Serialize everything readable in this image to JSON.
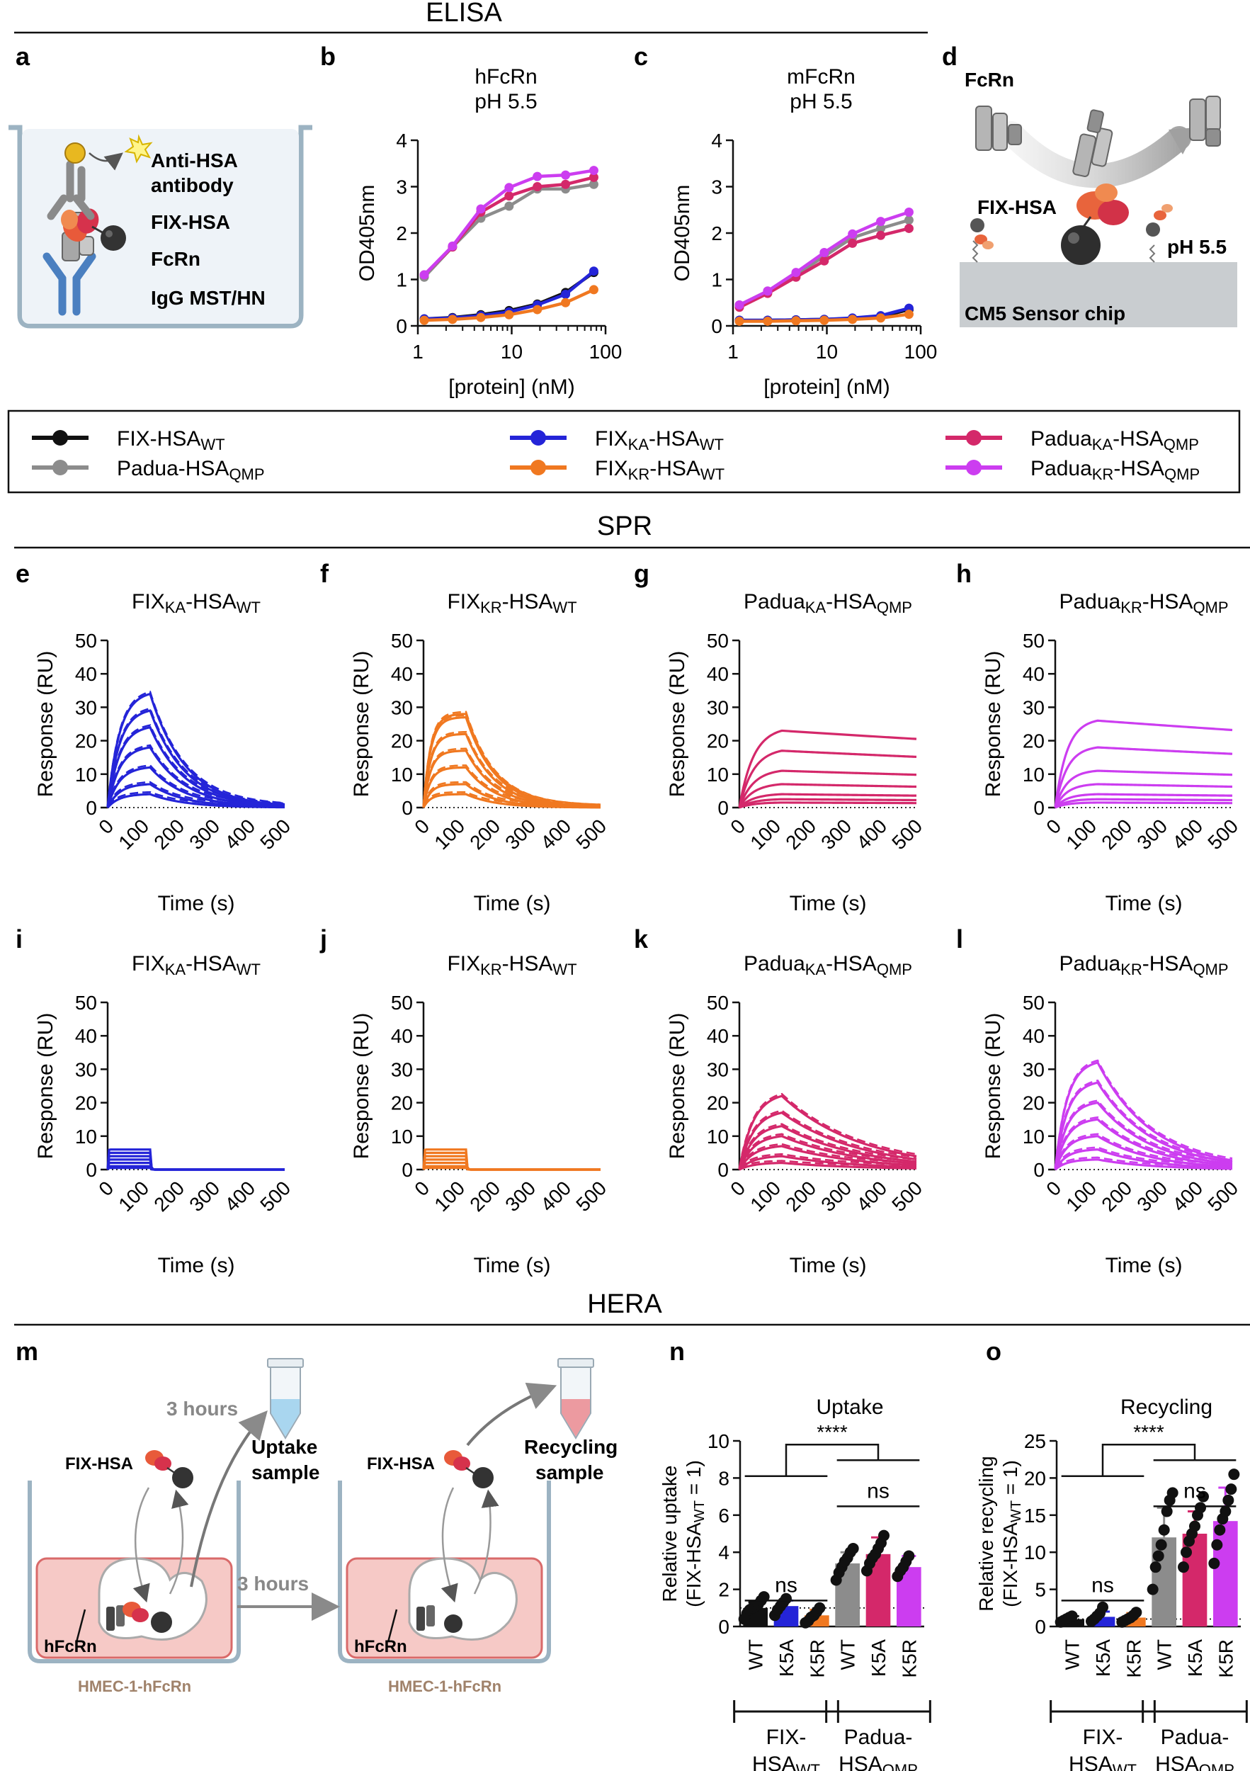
{
  "sections": {
    "elisa": "ELISA",
    "spr": "SPR",
    "hera": "HERA"
  },
  "panel_letters": {
    "a": "a",
    "b": "b",
    "c": "c",
    "d": "d",
    "e": "e",
    "f": "f",
    "g": "g",
    "h": "h",
    "i": "i",
    "j": "j",
    "k": "k",
    "l": "l",
    "m": "m",
    "n": "n",
    "o": "o"
  },
  "colors": {
    "FIX_WT": "#111111",
    "Padua_QMP": "#8c8c8c",
    "FIX_KA": "#2424d8",
    "FIX_KR": "#f07820",
    "Padua_KA": "#d4286a",
    "Padua_KR": "#cc3df0"
  },
  "panel_a": {
    "labels": [
      "Anti-HSA",
      "antibody",
      "FIX-HSA",
      "FcRn",
      "IgG MST/HN"
    ]
  },
  "panel_d": {
    "fcrn": "FcRn",
    "fixhsa": "FIX-HSA",
    "ph": "pH 5.5",
    "chip": "CM5 Sensor chip"
  },
  "legend": [
    {
      "key": "FIX_WT",
      "base": "FIX-HSA",
      "sub1": "",
      "mid": "",
      "sub2": "WT"
    },
    {
      "key": "Padua_QMP",
      "base": "Padua-HSA",
      "sub1": "",
      "mid": "",
      "sub2": "QMP"
    },
    {
      "key": "FIX_KA",
      "base": "FIX",
      "sub1": "KA",
      "mid": "-HSA",
      "sub2": "WT"
    },
    {
      "key": "FIX_KR",
      "base": "FIX",
      "sub1": "KR",
      "mid": "-HSA",
      "sub2": "WT"
    },
    {
      "key": "Padua_KA",
      "base": "Padua",
      "sub1": "KA",
      "mid": "-HSA",
      "sub2": "QMP"
    },
    {
      "key": "Padua_KR",
      "base": "Padua",
      "sub1": "KR",
      "mid": "-HSA",
      "sub2": "QMP"
    }
  ],
  "panel_m": {
    "three_hours_top": "3 hours",
    "uptake_1": "Uptake",
    "uptake_2": "sample",
    "fixhsa_1": "FIX-HSA",
    "fixhsa_2": "FIX-HSA",
    "hfcrn_1": "hFcRn",
    "hfcrn_2": "hFcRn",
    "three_hours_mid": "3 hours",
    "recycling_1": "Recycling",
    "recycling_2": "sample",
    "cells_1": "HMEC-1-hFcRn",
    "cells_2": "HMEC-1-hFcRn"
  },
  "chart_data": [
    {
      "id": "b",
      "type": "line",
      "title": [
        "hFcRn",
        "pH 5.5"
      ],
      "xlabel": "[protein] (nM)",
      "ylabel": "OD405nm",
      "xscale": "log",
      "xlim": [
        1,
        100
      ],
      "ylim": [
        0,
        4
      ],
      "xticks": [
        1,
        10,
        100
      ],
      "yticks": [
        0,
        1,
        2,
        3,
        4
      ],
      "x": [
        1.17,
        2.34,
        4.69,
        9.38,
        18.75,
        37.5,
        75
      ],
      "series": [
        {
          "key": "FIX_WT",
          "values": [
            0.15,
            0.18,
            0.24,
            0.33,
            0.47,
            0.72,
            1.15
          ]
        },
        {
          "key": "FIX_KA",
          "values": [
            0.15,
            0.17,
            0.22,
            0.3,
            0.45,
            0.68,
            1.18
          ]
        },
        {
          "key": "FIX_KR",
          "values": [
            0.12,
            0.14,
            0.18,
            0.24,
            0.35,
            0.5,
            0.78
          ]
        },
        {
          "key": "Padua_QMP",
          "values": [
            1.05,
            1.7,
            2.32,
            2.58,
            2.95,
            2.95,
            3.05
          ]
        },
        {
          "key": "Padua_KA",
          "values": [
            1.1,
            1.7,
            2.45,
            2.8,
            3.0,
            3.05,
            3.2
          ]
        },
        {
          "key": "Padua_KR",
          "values": [
            1.1,
            1.72,
            2.52,
            2.98,
            3.22,
            3.25,
            3.35
          ]
        }
      ]
    },
    {
      "id": "c",
      "type": "line",
      "title": [
        "mFcRn",
        "pH 5.5"
      ],
      "xlabel": "[protein] (nM)",
      "ylabel": "OD405nm",
      "xscale": "log",
      "xlim": [
        1,
        100
      ],
      "ylim": [
        0,
        4
      ],
      "xticks": [
        1,
        10,
        100
      ],
      "yticks": [
        0,
        1,
        2,
        3,
        4
      ],
      "x": [
        1.17,
        2.34,
        4.69,
        9.38,
        18.75,
        37.5,
        75
      ],
      "series": [
        {
          "key": "FIX_WT",
          "values": [
            0.12,
            0.12,
            0.13,
            0.14,
            0.16,
            0.2,
            0.35
          ]
        },
        {
          "key": "FIX_KA",
          "values": [
            0.12,
            0.12,
            0.13,
            0.14,
            0.17,
            0.22,
            0.38
          ]
        },
        {
          "key": "FIX_KR",
          "values": [
            0.1,
            0.1,
            0.11,
            0.12,
            0.14,
            0.17,
            0.25
          ]
        },
        {
          "key": "Padua_QMP",
          "values": [
            0.45,
            0.75,
            1.1,
            1.5,
            1.9,
            2.1,
            2.28
          ]
        },
        {
          "key": "Padua_KA",
          "values": [
            0.4,
            0.7,
            1.05,
            1.4,
            1.78,
            1.95,
            2.1
          ]
        },
        {
          "key": "Padua_KR",
          "values": [
            0.45,
            0.75,
            1.15,
            1.58,
            1.98,
            2.25,
            2.45
          ]
        }
      ]
    },
    {
      "id": "e",
      "type": "line",
      "key": "FIX_KA",
      "title": {
        "base": "FIX",
        "sub1": "KA",
        "mid": "-HSA",
        "sub2": "WT"
      },
      "xlabel": "Time (s)",
      "ylabel": "Response (RU)",
      "xlim": [
        0,
        500
      ],
      "ylim": [
        0,
        50
      ],
      "xticks": [
        0,
        100,
        200,
        300,
        400,
        500
      ],
      "yticks": [
        0,
        10,
        20,
        30,
        40,
        50
      ],
      "assoc_end": 120,
      "kon": 0.03,
      "koff": 0.01,
      "dashed": true,
      "rmax_values": [
        34,
        29,
        24,
        18,
        12,
        7,
        4
      ]
    },
    {
      "id": "f",
      "type": "line",
      "key": "FIX_KR",
      "title": {
        "base": "FIX",
        "sub1": "KR",
        "mid": "-HSA",
        "sub2": "WT"
      },
      "xlabel": "Time (s)",
      "ylabel": "Response (RU)",
      "xlim": [
        0,
        500
      ],
      "ylim": [
        0,
        50
      ],
      "xticks": [
        0,
        100,
        200,
        300,
        400,
        500
      ],
      "yticks": [
        0,
        10,
        20,
        30,
        40,
        50
      ],
      "assoc_end": 120,
      "kon": 0.05,
      "koff": 0.012,
      "dashed": true,
      "rmax_values": [
        28,
        27,
        22,
        17,
        12,
        7,
        4
      ]
    },
    {
      "id": "g",
      "type": "line",
      "key": "Padua_KA",
      "title": {
        "base": "Padua",
        "sub1": "KA",
        "mid": "-HSA",
        "sub2": "QMP"
      },
      "xlabel": "Time (s)",
      "ylabel": "Response (RU)",
      "xlim": [
        0,
        500
      ],
      "ylim": [
        0,
        50
      ],
      "xticks": [
        0,
        100,
        200,
        300,
        400,
        500
      ],
      "yticks": [
        0,
        10,
        20,
        30,
        40,
        50
      ],
      "assoc_end": 120,
      "kon": 0.025,
      "koff": 0.0003,
      "dashed": false,
      "rmax_values": [
        23,
        17,
        11,
        7,
        4,
        2.5,
        1.5
      ]
    },
    {
      "id": "h",
      "type": "line",
      "key": "Padua_KR",
      "title": {
        "base": "Padua",
        "sub1": "KR",
        "mid": "-HSA",
        "sub2": "QMP"
      },
      "xlabel": "Time (s)",
      "ylabel": "Response (RU)",
      "xlim": [
        0,
        500
      ],
      "ylim": [
        0,
        50
      ],
      "xticks": [
        0,
        100,
        200,
        300,
        400,
        500
      ],
      "yticks": [
        0,
        10,
        20,
        30,
        40,
        50
      ],
      "assoc_end": 120,
      "kon": 0.03,
      "koff": 0.0003,
      "dashed": false,
      "rmax_values": [
        26,
        18,
        11,
        7,
        4,
        2.5,
        1.5
      ]
    },
    {
      "id": "i",
      "type": "line",
      "key": "FIX_KA",
      "title": {
        "base": "FIX",
        "sub1": "KA",
        "mid": "-HSA",
        "sub2": "WT"
      },
      "xlabel": "Time (s)",
      "ylabel": "Response (RU)",
      "xlim": [
        0,
        500
      ],
      "ylim": [
        0,
        50
      ],
      "xticks": [
        0,
        100,
        200,
        300,
        400,
        500
      ],
      "yticks": [
        0,
        10,
        20,
        30,
        40,
        50
      ],
      "assoc_end": 120,
      "kon": 1.0,
      "koff": 0.5,
      "dashed": false,
      "rmax_values": [
        6,
        5,
        4,
        3,
        2,
        1,
        0.5
      ]
    },
    {
      "id": "j",
      "type": "line",
      "key": "FIX_KR",
      "title": {
        "base": "FIX",
        "sub1": "KR",
        "mid": "-HSA",
        "sub2": "WT"
      },
      "xlabel": "Time (s)",
      "ylabel": "Response (RU)",
      "xlim": [
        0,
        500
      ],
      "ylim": [
        0,
        50
      ],
      "xticks": [
        0,
        100,
        200,
        300,
        400,
        500
      ],
      "yticks": [
        0,
        10,
        20,
        30,
        40,
        50
      ],
      "assoc_end": 120,
      "kon": 1.0,
      "koff": 0.5,
      "dashed": false,
      "rmax_values": [
        6,
        5,
        4,
        3,
        2,
        1,
        0.5
      ]
    },
    {
      "id": "k",
      "type": "line",
      "key": "Padua_KA",
      "title": {
        "base": "Padua",
        "sub1": "KA",
        "mid": "-HSA",
        "sub2": "QMP"
      },
      "xlabel": "Time (s)",
      "ylabel": "Response (RU)",
      "xlim": [
        0,
        500
      ],
      "ylim": [
        0,
        50
      ],
      "xticks": [
        0,
        100,
        200,
        300,
        400,
        500
      ],
      "yticks": [
        0,
        10,
        20,
        30,
        40,
        50
      ],
      "assoc_end": 120,
      "kon": 0.025,
      "koff": 0.0045,
      "dashed": true,
      "rmax_values": [
        22,
        17,
        13,
        10,
        7,
        4,
        2
      ]
    },
    {
      "id": "l",
      "type": "line",
      "key": "Padua_KR",
      "title": {
        "base": "Padua",
        "sub1": "KR",
        "mid": "-HSA",
        "sub2": "QMP"
      },
      "xlabel": "Time (s)",
      "ylabel": "Response (RU)",
      "xlim": [
        0,
        500
      ],
      "ylim": [
        0,
        50
      ],
      "xticks": [
        0,
        100,
        200,
        300,
        400,
        500
      ],
      "yticks": [
        0,
        10,
        20,
        30,
        40,
        50
      ],
      "assoc_end": 120,
      "kon": 0.03,
      "koff": 0.0065,
      "dashed": true,
      "rmax_values": [
        32,
        26,
        20,
        15,
        10,
        6,
        3
      ]
    },
    {
      "id": "n",
      "type": "bar",
      "title": "Uptake",
      "ylabel": [
        "Relative uptake",
        "(FIX-HSA",
        "WT",
        " = 1)"
      ],
      "ylim": [
        0,
        10
      ],
      "yticks": [
        0,
        2,
        4,
        6,
        8,
        10
      ],
      "categories": [
        "WT",
        "K5A",
        "K5R",
        "WT",
        "K5A",
        "K5R"
      ],
      "keys": [
        "FIX_WT",
        "FIX_KA",
        "FIX_KR",
        "Padua_QMP",
        "Padua_KA",
        "Padua_KR"
      ],
      "values": [
        1.0,
        1.1,
        0.6,
        3.4,
        3.9,
        3.2
      ],
      "errors": [
        0.3,
        0.3,
        0.3,
        0.6,
        0.9,
        0.6
      ],
      "points": [
        [
          0.4,
          0.7,
          0.9,
          1.0,
          1.1,
          1.2,
          1.4,
          1.6
        ],
        [
          0.6,
          0.9,
          1.1,
          1.3,
          1.5
        ],
        [
          0.2,
          0.3,
          0.5,
          0.6,
          0.8,
          1.0
        ],
        [
          2.5,
          2.9,
          3.2,
          3.5,
          3.7,
          4.0,
          4.2
        ],
        [
          3.0,
          3.4,
          3.7,
          3.9,
          4.2,
          4.5,
          4.9
        ],
        [
          2.7,
          3.0,
          3.2,
          3.5,
          3.8
        ]
      ],
      "reference_line": 1,
      "sig_labels": [
        "****",
        "ns",
        "ns"
      ],
      "groups": [
        {
          "base": "FIX-",
          "line2": "HSA",
          "sub": "WT"
        },
        {
          "base": "Padua-",
          "line2": "HSA",
          "sub": "QMP"
        }
      ]
    },
    {
      "id": "o",
      "type": "bar",
      "title": "Recycling",
      "ylabel": [
        "Relative recycling",
        "(FIX-HSA",
        "WT",
        " = 1)"
      ],
      "ylim": [
        0,
        25
      ],
      "yticks": [
        0,
        5,
        10,
        15,
        20,
        25
      ],
      "categories": [
        "WT",
        "K5A",
        "K5R",
        "WT",
        "K5A",
        "K5R"
      ],
      "keys": [
        "FIX_WT",
        "FIX_KA",
        "FIX_KR",
        "Padua_QMP",
        "Padua_KA",
        "Padua_KR"
      ],
      "values": [
        1.0,
        1.3,
        1.2,
        12.0,
        12.5,
        14.2
      ],
      "errors": [
        0.4,
        0.7,
        0.6,
        4.0,
        3.0,
        4.5
      ],
      "points": [
        [
          0.6,
          0.8,
          1.0,
          1.2,
          1.4
        ],
        [
          0.7,
          1.0,
          1.4,
          1.8,
          2.6
        ],
        [
          0.6,
          0.8,
          1.0,
          1.2,
          1.5,
          1.9
        ],
        [
          5.0,
          8.0,
          9.5,
          11.0,
          13.0,
          15.5,
          17.0,
          18.0
        ],
        [
          8.0,
          10.0,
          11.5,
          12.5,
          13.5,
          15.0,
          16.0,
          17.5
        ],
        [
          8.5,
          11.0,
          13.0,
          14.5,
          15.5,
          17.0,
          18.5,
          20.5
        ]
      ],
      "reference_line": 1,
      "sig_labels": [
        "****",
        "ns",
        "ns"
      ],
      "groups": [
        {
          "base": "FIX-",
          "line2": "HSA",
          "sub": "WT"
        },
        {
          "base": "Padua-",
          "line2": "HSA",
          "sub": "QMP"
        }
      ]
    }
  ]
}
